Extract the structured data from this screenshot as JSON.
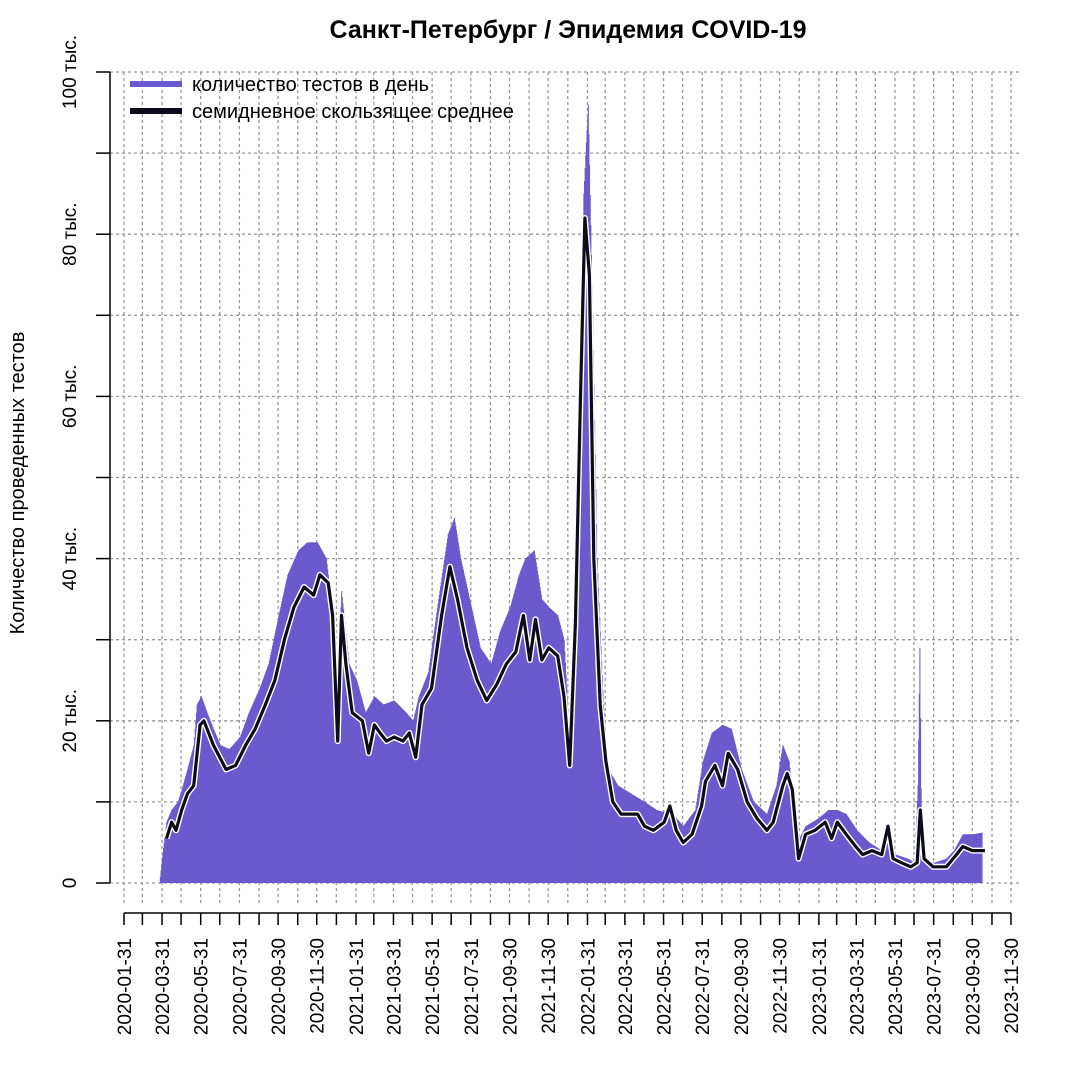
{
  "colors": {
    "bars": "#6a5acd",
    "avg": "#0b0d1a",
    "grid": "#9a9a9a",
    "axis": "#000000",
    "background": "#ffffff"
  },
  "chart_data": {
    "type": "bar",
    "title": "Санкт-Петербург / Эпидемия COVID-19",
    "xlabel": "",
    "ylabel": "Количество проведенных тестов",
    "ylim": [
      0,
      100000
    ],
    "xlim": [
      "2020-01-31",
      "2023-11-30"
    ],
    "yticks": [
      {
        "value": 0,
        "label": "0"
      },
      {
        "value": 20000,
        "label": "20 тыс."
      },
      {
        "value": 40000,
        "label": "40 тыс."
      },
      {
        "value": 60000,
        "label": "60 тыс."
      },
      {
        "value": 80000,
        "label": "80 тыс."
      },
      {
        "value": 100000,
        "label": "100 тыс."
      }
    ],
    "xtick_labels": [
      "2020-01-31",
      "2020-03-31",
      "2020-05-31",
      "2020-07-31",
      "2020-09-30",
      "2020-11-30",
      "2021-01-31",
      "2021-03-31",
      "2021-05-31",
      "2021-07-31",
      "2021-09-30",
      "2021-11-30",
      "2022-01-31",
      "2022-03-31",
      "2022-05-31",
      "2022-07-31",
      "2022-09-30",
      "2022-11-30",
      "2023-01-31",
      "2023-03-31",
      "2023-05-31",
      "2023-07-31",
      "2023-09-30",
      "2023-11-30"
    ],
    "grid": true,
    "legend": {
      "position": "top-left",
      "entries": [
        {
          "label": "количество тестов в день",
          "color": "#6a5acd"
        },
        {
          "label": "семидневное скользящее среднее",
          "color": "#0b0d1a"
        }
      ]
    },
    "series": [
      {
        "name": "количество тестов в день",
        "type": "bar",
        "daily": true,
        "points": [
          [
            "2020-03-27",
            0
          ],
          [
            "2020-03-31",
            3000
          ],
          [
            "2020-04-07",
            7500
          ],
          [
            "2020-04-15",
            9000
          ],
          [
            "2020-04-25",
            10000
          ],
          [
            "2020-05-01",
            11500
          ],
          [
            "2020-05-10",
            14000
          ],
          [
            "2020-05-20",
            17000
          ],
          [
            "2020-05-25",
            22000
          ],
          [
            "2020-06-01",
            23000
          ],
          [
            "2020-06-10",
            21000
          ],
          [
            "2020-06-20",
            19000
          ],
          [
            "2020-07-01",
            17000
          ],
          [
            "2020-07-15",
            16500
          ],
          [
            "2020-08-01",
            18000
          ],
          [
            "2020-08-15",
            21000
          ],
          [
            "2020-09-01",
            24000
          ],
          [
            "2020-09-15",
            27000
          ],
          [
            "2020-10-01",
            33000
          ],
          [
            "2020-10-15",
            38000
          ],
          [
            "2020-11-01",
            41000
          ],
          [
            "2020-11-15",
            42000
          ],
          [
            "2020-12-01",
            42000
          ],
          [
            "2020-12-15",
            40000
          ],
          [
            "2020-12-24",
            34000
          ],
          [
            "2021-01-01",
            22000
          ],
          [
            "2021-01-08",
            36000
          ],
          [
            "2021-01-20",
            27000
          ],
          [
            "2021-02-01",
            25000
          ],
          [
            "2021-02-15",
            21000
          ],
          [
            "2021-03-01",
            23000
          ],
          [
            "2021-03-15",
            22000
          ],
          [
            "2021-04-01",
            22500
          ],
          [
            "2021-04-20",
            21000
          ],
          [
            "2021-05-01",
            20000
          ],
          [
            "2021-05-10",
            23000
          ],
          [
            "2021-05-25",
            26000
          ],
          [
            "2021-06-10",
            35000
          ],
          [
            "2021-06-25",
            43000
          ],
          [
            "2021-07-05",
            45000
          ],
          [
            "2021-07-15",
            40000
          ],
          [
            "2021-08-01",
            34000
          ],
          [
            "2021-08-15",
            29000
          ],
          [
            "2021-09-01",
            27000
          ],
          [
            "2021-09-15",
            31000
          ],
          [
            "2021-10-01",
            34000
          ],
          [
            "2021-10-15",
            38000
          ],
          [
            "2021-10-25",
            40000
          ],
          [
            "2021-11-08",
            41000
          ],
          [
            "2021-11-20",
            35000
          ],
          [
            "2021-12-01",
            34000
          ],
          [
            "2021-12-15",
            33000
          ],
          [
            "2021-12-25",
            30000
          ],
          [
            "2022-01-03",
            17000
          ],
          [
            "2022-01-15",
            55000
          ],
          [
            "2022-01-25",
            85000
          ],
          [
            "2022-02-01",
            96000
          ],
          [
            "2022-02-08",
            70000
          ],
          [
            "2022-02-15",
            40000
          ],
          [
            "2022-02-25",
            22000
          ],
          [
            "2022-03-05",
            14000
          ],
          [
            "2022-03-20",
            12000
          ],
          [
            "2022-04-10",
            11000
          ],
          [
            "2022-05-01",
            10000
          ],
          [
            "2022-05-20",
            9000
          ],
          [
            "2022-06-10",
            8500
          ],
          [
            "2022-06-20",
            8000
          ],
          [
            "2022-07-01",
            7000
          ],
          [
            "2022-07-20",
            9000
          ],
          [
            "2022-08-01",
            15000
          ],
          [
            "2022-08-15",
            18500
          ],
          [
            "2022-09-01",
            19500
          ],
          [
            "2022-09-15",
            19000
          ],
          [
            "2022-10-01",
            14000
          ],
          [
            "2022-10-20",
            10000
          ],
          [
            "2022-11-10",
            8500
          ],
          [
            "2022-11-25",
            12000
          ],
          [
            "2022-12-05",
            17000
          ],
          [
            "2022-12-15",
            15000
          ],
          [
            "2022-12-28",
            5000
          ],
          [
            "2023-01-10",
            7000
          ],
          [
            "2023-01-31",
            8000
          ],
          [
            "2023-02-15",
            9000
          ],
          [
            "2023-03-01",
            9000
          ],
          [
            "2023-03-15",
            8500
          ],
          [
            "2023-04-01",
            6500
          ],
          [
            "2023-04-20",
            5000
          ],
          [
            "2023-05-10",
            4000
          ],
          [
            "2023-05-20",
            5000
          ],
          [
            "2023-06-01",
            3500
          ],
          [
            "2023-06-20",
            3000
          ],
          [
            "2023-07-01",
            2500
          ],
          [
            "2023-07-06",
            12000
          ],
          [
            "2023-07-09",
            29000
          ],
          [
            "2023-07-12",
            3000
          ],
          [
            "2023-08-01",
            2500
          ],
          [
            "2023-08-20",
            3000
          ],
          [
            "2023-09-01",
            4000
          ],
          [
            "2023-09-15",
            6000
          ],
          [
            "2023-10-01",
            6000
          ],
          [
            "2023-10-15",
            6200
          ]
        ]
      },
      {
        "name": "семидневное скользящее среднее",
        "type": "line",
        "points": [
          [
            "2020-04-07",
            5500
          ],
          [
            "2020-04-15",
            7500
          ],
          [
            "2020-04-22",
            6500
          ],
          [
            "2020-05-01",
            9000
          ],
          [
            "2020-05-10",
            11000
          ],
          [
            "2020-05-20",
            12000
          ],
          [
            "2020-05-30",
            19500
          ],
          [
            "2020-06-05",
            20000
          ],
          [
            "2020-06-20",
            17000
          ],
          [
            "2020-07-10",
            14000
          ],
          [
            "2020-07-25",
            14500
          ],
          [
            "2020-08-10",
            17000
          ],
          [
            "2020-08-25",
            19000
          ],
          [
            "2020-09-10",
            22000
          ],
          [
            "2020-09-25",
            25000
          ],
          [
            "2020-10-10",
            30000
          ],
          [
            "2020-10-25",
            34000
          ],
          [
            "2020-11-10",
            36500
          ],
          [
            "2020-11-25",
            35500
          ],
          [
            "2020-12-05",
            38000
          ],
          [
            "2020-12-18",
            37000
          ],
          [
            "2020-12-25",
            33000
          ],
          [
            "2021-01-02",
            17500
          ],
          [
            "2021-01-08",
            33000
          ],
          [
            "2021-01-15",
            27000
          ],
          [
            "2021-01-25",
            21000
          ],
          [
            "2021-02-10",
            20000
          ],
          [
            "2021-02-20",
            16000
          ],
          [
            "2021-03-01",
            19500
          ],
          [
            "2021-03-10",
            18500
          ],
          [
            "2021-03-20",
            17500
          ],
          [
            "2021-04-01",
            18000
          ],
          [
            "2021-04-15",
            17500
          ],
          [
            "2021-04-25",
            18500
          ],
          [
            "2021-05-05",
            15500
          ],
          [
            "2021-05-15",
            22000
          ],
          [
            "2021-05-30",
            24000
          ],
          [
            "2021-06-15",
            33000
          ],
          [
            "2021-06-28",
            39000
          ],
          [
            "2021-07-10",
            35000
          ],
          [
            "2021-07-25",
            29000
          ],
          [
            "2021-08-10",
            25000
          ],
          [
            "2021-08-25",
            22500
          ],
          [
            "2021-09-10",
            24500
          ],
          [
            "2021-09-25",
            27000
          ],
          [
            "2021-10-10",
            28500
          ],
          [
            "2021-10-22",
            33000
          ],
          [
            "2021-11-01",
            27500
          ],
          [
            "2021-11-10",
            32500
          ],
          [
            "2021-11-20",
            27500
          ],
          [
            "2021-12-01",
            29000
          ],
          [
            "2021-12-15",
            28000
          ],
          [
            "2021-12-25",
            23000
          ],
          [
            "2022-01-03",
            14500
          ],
          [
            "2022-01-12",
            32000
          ],
          [
            "2022-01-20",
            60000
          ],
          [
            "2022-01-27",
            82000
          ],
          [
            "2022-02-03",
            75000
          ],
          [
            "2022-02-10",
            40000
          ],
          [
            "2022-02-20",
            22000
          ],
          [
            "2022-03-01",
            15000
          ],
          [
            "2022-03-12",
            10000
          ],
          [
            "2022-03-25",
            8500
          ],
          [
            "2022-04-20",
            8500
          ],
          [
            "2022-05-01",
            7000
          ],
          [
            "2022-05-15",
            6500
          ],
          [
            "2022-06-01",
            7500
          ],
          [
            "2022-06-10",
            9500
          ],
          [
            "2022-06-20",
            6500
          ],
          [
            "2022-07-01",
            5000
          ],
          [
            "2022-07-15",
            6000
          ],
          [
            "2022-07-30",
            9500
          ],
          [
            "2022-08-05",
            12500
          ],
          [
            "2022-08-20",
            14500
          ],
          [
            "2022-09-01",
            12000
          ],
          [
            "2022-09-10",
            16000
          ],
          [
            "2022-09-25",
            14000
          ],
          [
            "2022-10-10",
            10000
          ],
          [
            "2022-10-25",
            8000
          ],
          [
            "2022-11-10",
            6500
          ],
          [
            "2022-11-20",
            7500
          ],
          [
            "2022-12-05",
            12000
          ],
          [
            "2022-12-12",
            13500
          ],
          [
            "2022-12-20",
            11500
          ],
          [
            "2022-12-30",
            3000
          ],
          [
            "2023-01-10",
            6000
          ],
          [
            "2023-01-25",
            6500
          ],
          [
            "2023-02-10",
            7500
          ],
          [
            "2023-02-20",
            5500
          ],
          [
            "2023-03-01",
            7500
          ],
          [
            "2023-03-15",
            6000
          ],
          [
            "2023-03-30",
            4500
          ],
          [
            "2023-04-10",
            3500
          ],
          [
            "2023-04-25",
            4000
          ],
          [
            "2023-05-10",
            3500
          ],
          [
            "2023-05-20",
            7000
          ],
          [
            "2023-05-28",
            3000
          ],
          [
            "2023-06-10",
            2500
          ],
          [
            "2023-06-25",
            2000
          ],
          [
            "2023-07-05",
            2500
          ],
          [
            "2023-07-10",
            9000
          ],
          [
            "2023-07-16",
            3000
          ],
          [
            "2023-07-30",
            2000
          ],
          [
            "2023-08-20",
            2000
          ],
          [
            "2023-09-05",
            3500
          ],
          [
            "2023-09-15",
            4500
          ],
          [
            "2023-09-30",
            4000
          ],
          [
            "2023-10-20",
            4000
          ]
        ]
      }
    ]
  }
}
